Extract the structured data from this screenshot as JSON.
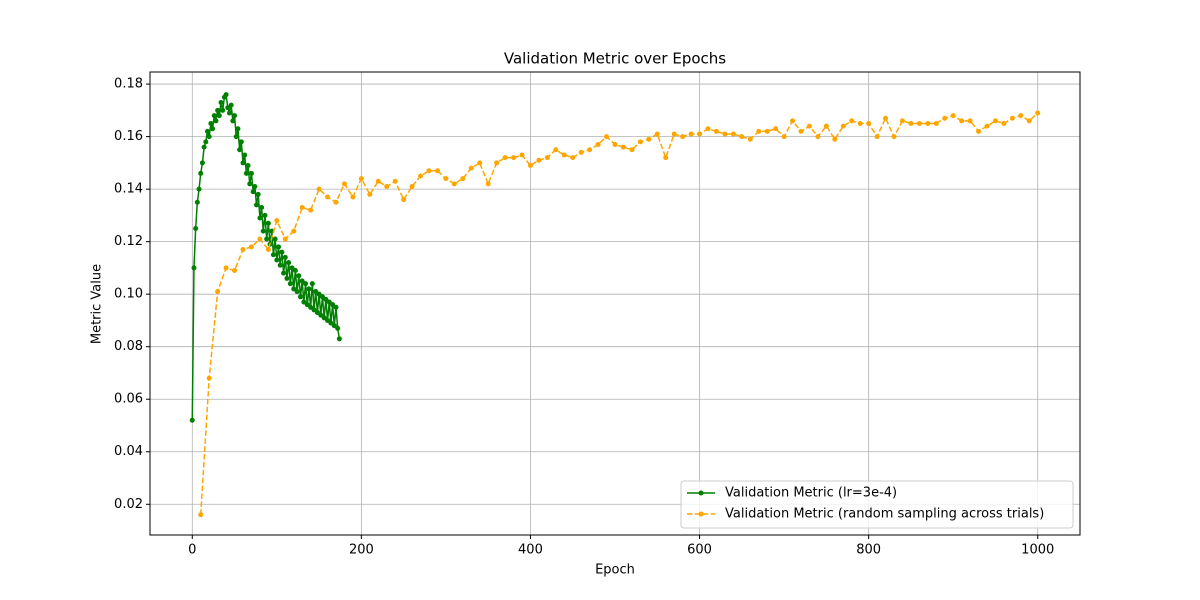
{
  "chart_data": {
    "type": "line",
    "title": "Validation Metric over Epochs",
    "x_label": "Epoch",
    "y_label": "Metric Value",
    "xlim": [
      -50,
      1050
    ],
    "ylim": [
      0.0083,
      0.1846
    ],
    "xticks": [
      0,
      200,
      400,
      600,
      800,
      1000
    ],
    "yticks": [
      0.02,
      0.04,
      0.06,
      0.08,
      {
        "value": 0.1,
        "label": "0.10"
      },
      0.12,
      0.14,
      0.16,
      0.18
    ],
    "grid": true,
    "legend": "lower right",
    "series": [
      {
        "name": "Validation Metric (lr=3e-4)",
        "color": "green",
        "dash": false,
        "x": [
          0,
          2,
          4,
          6,
          8,
          10,
          12,
          14,
          16,
          18,
          20,
          22,
          24,
          26,
          28,
          30,
          32,
          34,
          36,
          38,
          40,
          42,
          44,
          46,
          48,
          50,
          52,
          54,
          56,
          58,
          60,
          62,
          64,
          66,
          68,
          70,
          72,
          74,
          76,
          78,
          80,
          82,
          84,
          86,
          88,
          90,
          92,
          94,
          96,
          98,
          100,
          102,
          104,
          106,
          108,
          110,
          112,
          114,
          116,
          118,
          120,
          122,
          124,
          126,
          128,
          130,
          132,
          134,
          136,
          138,
          140,
          142,
          144,
          146,
          148,
          150,
          152,
          154,
          156,
          158,
          160,
          162,
          164,
          166,
          168,
          170,
          172,
          174
        ],
        "values": [
          0.052,
          0.11,
          0.125,
          0.135,
          0.14,
          0.146,
          0.15,
          0.156,
          0.158,
          0.162,
          0.16,
          0.165,
          0.163,
          0.168,
          0.166,
          0.17,
          0.168,
          0.173,
          0.17,
          0.175,
          0.176,
          0.171,
          0.169,
          0.172,
          0.166,
          0.168,
          0.16,
          0.163,
          0.155,
          0.158,
          0.15,
          0.153,
          0.146,
          0.149,
          0.142,
          0.146,
          0.139,
          0.141,
          0.134,
          0.138,
          0.129,
          0.133,
          0.124,
          0.13,
          0.121,
          0.127,
          0.119,
          0.124,
          0.115,
          0.121,
          0.113,
          0.118,
          0.111,
          0.116,
          0.108,
          0.114,
          0.106,
          0.112,
          0.104,
          0.11,
          0.102,
          0.109,
          0.101,
          0.107,
          0.099,
          0.105,
          0.097,
          0.104,
          0.096,
          0.102,
          0.095,
          0.104,
          0.094,
          0.101,
          0.093,
          0.1,
          0.092,
          0.099,
          0.091,
          0.098,
          0.09,
          0.097,
          0.089,
          0.096,
          0.088,
          0.095,
          0.087,
          0.083
        ]
      },
      {
        "name": "Validation Metric (random sampling across trials)",
        "color": "orange",
        "dash": true,
        "x": [
          10,
          20,
          30,
          40,
          50,
          60,
          70,
          80,
          90,
          100,
          110,
          120,
          130,
          140,
          150,
          160,
          170,
          180,
          190,
          200,
          210,
          220,
          230,
          240,
          250,
          260,
          270,
          280,
          290,
          300,
          310,
          320,
          330,
          340,
          350,
          360,
          370,
          380,
          390,
          400,
          410,
          420,
          430,
          440,
          450,
          460,
          470,
          480,
          490,
          500,
          510,
          520,
          530,
          540,
          550,
          560,
          570,
          580,
          590,
          600,
          610,
          620,
          630,
          640,
          650,
          660,
          670,
          680,
          690,
          700,
          710,
          720,
          730,
          740,
          750,
          760,
          770,
          780,
          790,
          800,
          810,
          820,
          830,
          840,
          850,
          860,
          870,
          880,
          890,
          900,
          910,
          920,
          930,
          940,
          950,
          960,
          970,
          980,
          990,
          1000
        ],
        "values": [
          0.016,
          0.068,
          0.101,
          0.11,
          0.109,
          0.117,
          0.118,
          0.121,
          0.117,
          0.128,
          0.121,
          0.124,
          0.133,
          0.132,
          0.14,
          0.137,
          0.135,
          0.142,
          0.137,
          0.144,
          0.138,
          0.143,
          0.141,
          0.143,
          0.136,
          0.141,
          0.145,
          0.147,
          0.147,
          0.144,
          0.142,
          0.144,
          0.148,
          0.15,
          0.142,
          0.15,
          0.152,
          0.152,
          0.153,
          0.149,
          0.151,
          0.152,
          0.155,
          0.153,
          0.152,
          0.154,
          0.155,
          0.157,
          0.16,
          0.157,
          0.156,
          0.155,
          0.158,
          0.159,
          0.161,
          0.152,
          0.161,
          0.16,
          0.161,
          0.161,
          0.163,
          0.162,
          0.161,
          0.161,
          0.16,
          0.159,
          0.162,
          0.162,
          0.163,
          0.16,
          0.166,
          0.162,
          0.164,
          0.16,
          0.164,
          0.159,
          0.164,
          0.166,
          0.165,
          0.165,
          0.16,
          0.167,
          0.16,
          0.166,
          0.165,
          0.165,
          0.165,
          0.165,
          0.167,
          0.168,
          0.166,
          0.166,
          0.162,
          0.164,
          0.166,
          0.165,
          0.167,
          0.168,
          0.166,
          0.169
        ]
      }
    ]
  }
}
